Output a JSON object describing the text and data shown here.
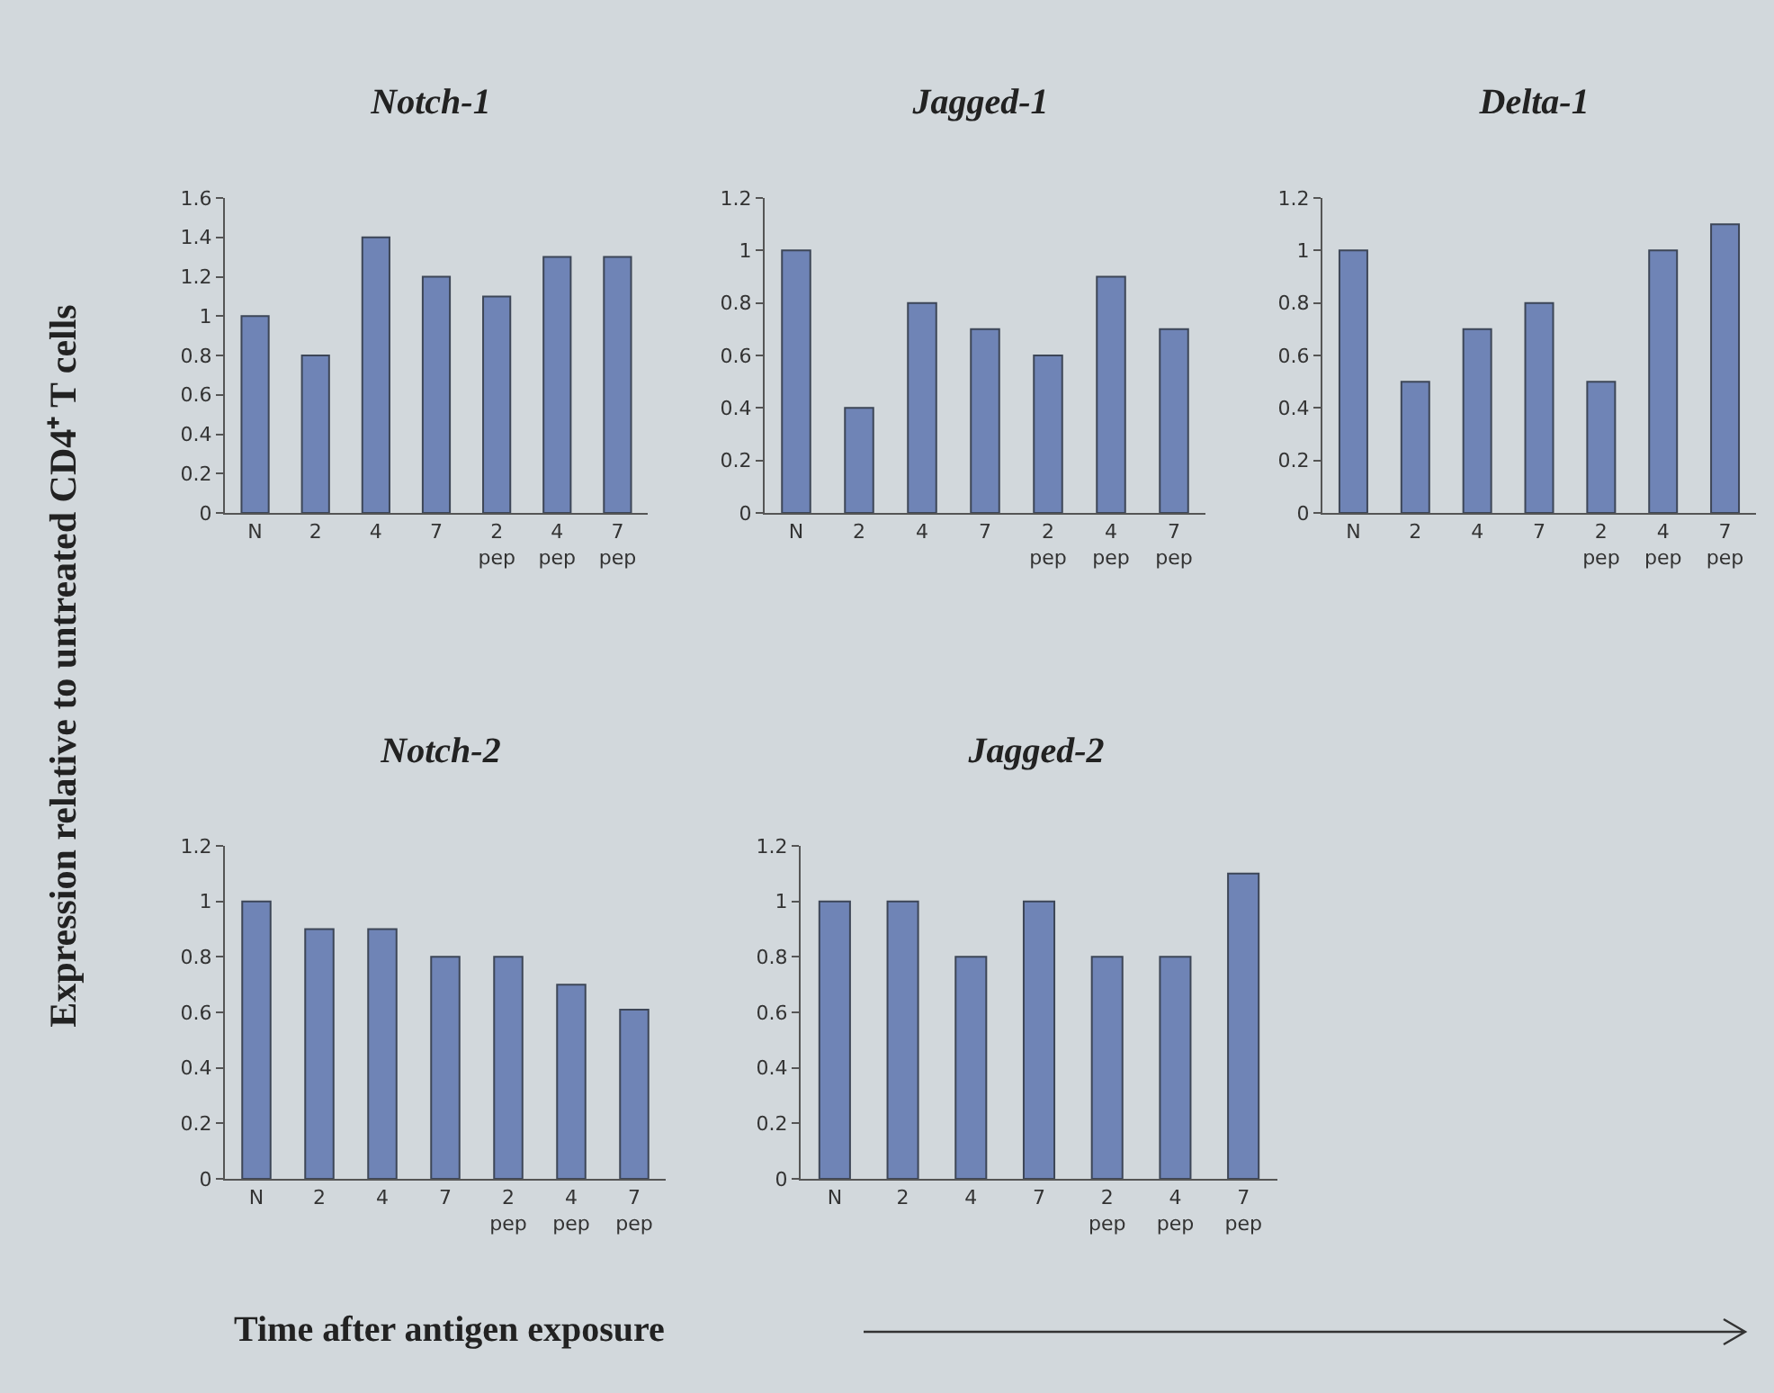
{
  "chart_data": [
    {
      "type": "bar",
      "title": "Notch-1",
      "ylabel": "Expression relative to untreated CD4⁺ T cells",
      "categories": [
        "N",
        "2",
        "4",
        "7",
        "2\npep",
        "4\npep",
        "7\npep"
      ],
      "values": [
        1.0,
        0.8,
        1.4,
        1.2,
        1.1,
        1.3,
        1.3
      ],
      "color": "#6f84b6",
      "ylim": [
        0,
        1.6
      ],
      "yticks": [
        0,
        0.2,
        0.4,
        0.6,
        0.8,
        1,
        1.2,
        1.4,
        1.6
      ],
      "grid": false,
      "legend": false
    },
    {
      "type": "bar",
      "title": "Jagged-1",
      "categories": [
        "N",
        "2",
        "4",
        "7",
        "2\npep",
        "4\npep",
        "7\npep"
      ],
      "values": [
        1.0,
        0.4,
        0.8,
        0.7,
        0.6,
        0.9,
        0.7
      ],
      "color": "#6f84b6",
      "ylim": [
        0,
        1.2
      ],
      "yticks": [
        0,
        0.2,
        0.4,
        0.6,
        0.8,
        1,
        1.2
      ],
      "grid": false,
      "legend": false
    },
    {
      "type": "bar",
      "title": "Delta-1",
      "categories": [
        "N",
        "2",
        "4",
        "7",
        "2\npep",
        "4\npep",
        "7\npep"
      ],
      "values": [
        1.0,
        0.5,
        0.7,
        0.8,
        0.5,
        1.0,
        1.1
      ],
      "color": "#6f84b6",
      "ylim": [
        0,
        1.2
      ],
      "yticks": [
        0,
        0.2,
        0.4,
        0.6,
        0.8,
        1,
        1.2
      ],
      "grid": false,
      "legend": false
    },
    {
      "type": "bar",
      "title": "Notch-2",
      "xlabel": "Time after antigen exposure",
      "categories": [
        "N",
        "2",
        "4",
        "7",
        "2\npep",
        "4\npep",
        "7\npep"
      ],
      "values": [
        1.0,
        0.9,
        0.9,
        0.8,
        0.8,
        0.7,
        0.61
      ],
      "color": "#6f84b6",
      "ylim": [
        0,
        1.2
      ],
      "yticks": [
        0,
        0.2,
        0.4,
        0.6,
        0.8,
        1,
        1.2
      ],
      "grid": false,
      "legend": false
    },
    {
      "type": "bar",
      "title": "Jagged-2",
      "categories": [
        "N",
        "2",
        "4",
        "7",
        "2\npep",
        "4\npep",
        "7\npep"
      ],
      "values": [
        1.0,
        1.0,
        0.8,
        1.0,
        0.8,
        0.8,
        1.1
      ],
      "color": "#6f84b6",
      "ylim": [
        0,
        1.2
      ],
      "yticks": [
        0,
        0.2,
        0.4,
        0.6,
        0.8,
        1,
        1.2
      ],
      "grid": false,
      "legend": false
    }
  ]
}
